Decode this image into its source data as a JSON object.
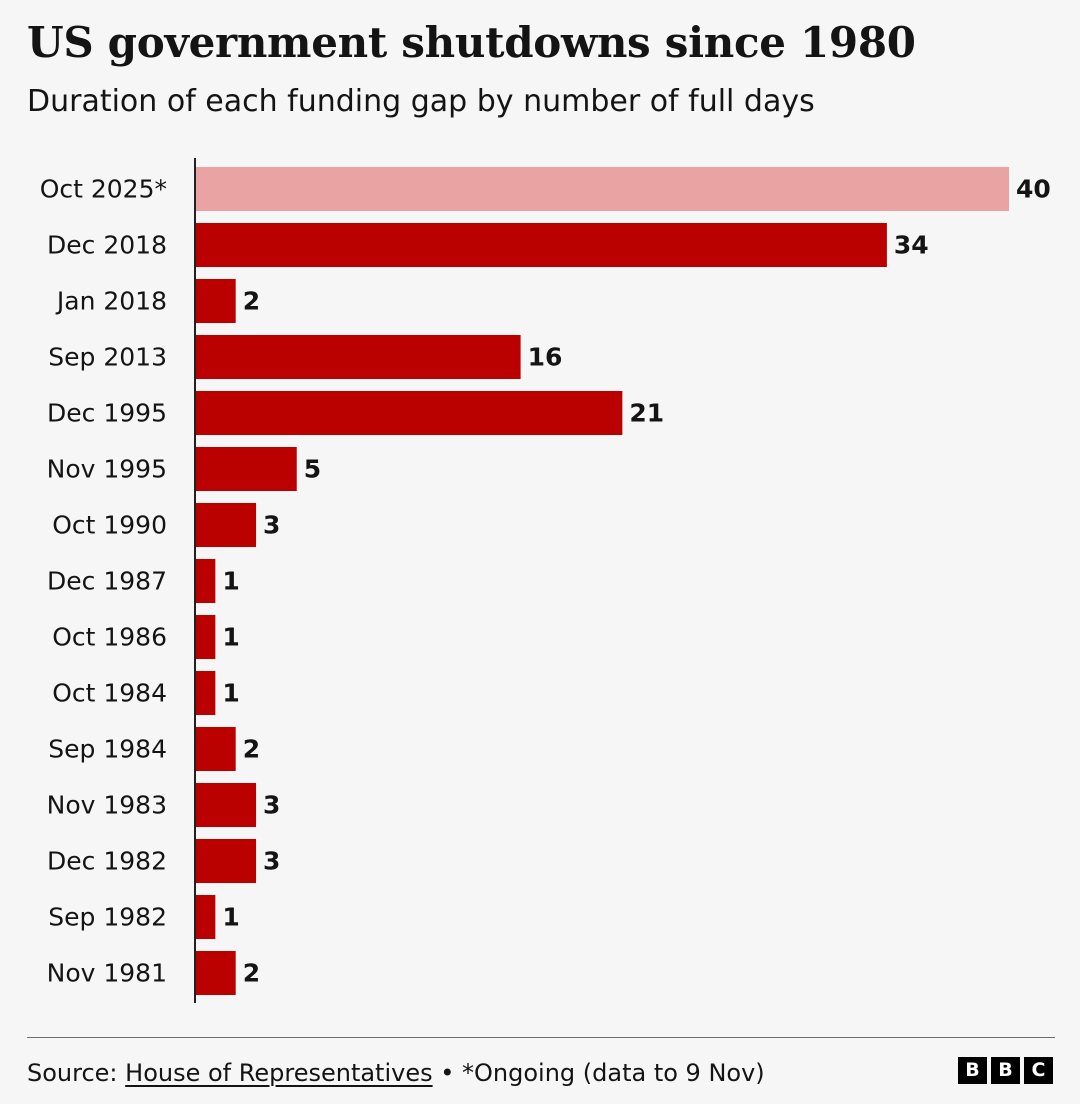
{
  "chart_data": {
    "type": "bar",
    "orientation": "horizontal",
    "title": "US government shutdowns since 1980",
    "subtitle": "Duration of each funding gap by number of full days",
    "categories": [
      "Oct 2025*",
      "Dec 2018",
      "Jan 2018",
      "Sep 2013",
      "Dec 1995",
      "Nov 1995",
      "Oct 1990",
      "Dec 1987",
      "Oct 1986",
      "Oct 1984",
      "Sep 1984",
      "Nov 1983",
      "Dec 1982",
      "Sep 1982",
      "Nov 1981"
    ],
    "values": [
      40,
      34,
      2,
      16,
      21,
      5,
      3,
      1,
      1,
      1,
      2,
      3,
      3,
      1,
      2
    ],
    "xlim": [
      0,
      40
    ],
    "grid": false,
    "colors": {
      "bar": "#bb0000",
      "highlight": "#e9a3a3",
      "highlighted_category": "Oct 2025*",
      "axis": "#222222",
      "text": "#141414"
    }
  },
  "footer": {
    "source_prefix": "Source: ",
    "source_link": "House of Representatives",
    "note": " • *Ongoing (data to 9 Nov)",
    "logo_letters": [
      "B",
      "B",
      "C"
    ]
  }
}
